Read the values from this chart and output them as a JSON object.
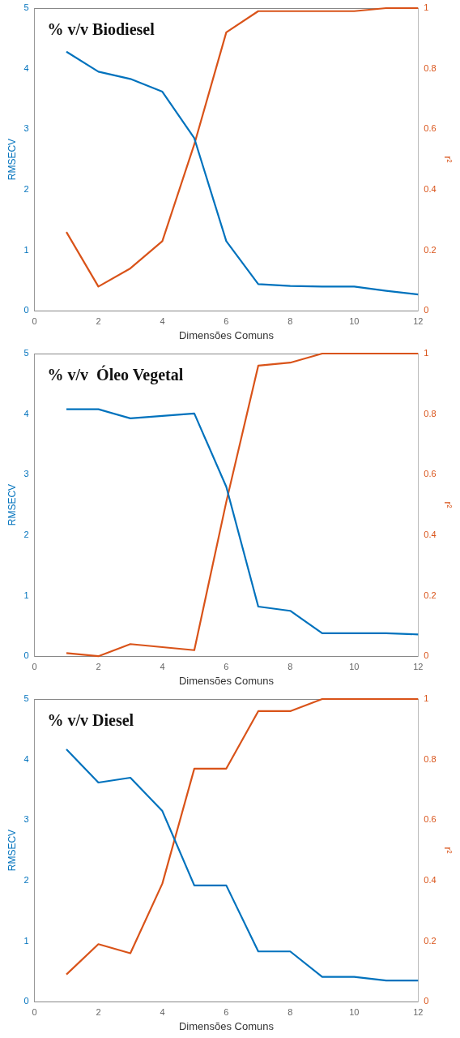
{
  "chart_data": [
    {
      "type": "line",
      "title": "% v/v Biodiesel",
      "xlabel": "Dimensões Comuns",
      "ylabel": "RMSECV",
      "y2label": "r²",
      "x": [
        1,
        2,
        3,
        4,
        5,
        6,
        7,
        8,
        9,
        10,
        11,
        12
      ],
      "series": [
        {
          "color": "#0072bd",
          "values": [
            4.28,
            3.95,
            3.83,
            3.62,
            2.85,
            1.15,
            0.44,
            0.41,
            0.4,
            0.4,
            0.33,
            0.27
          ]
        },
        {
          "color": "#d95319",
          "axis": "y2",
          "values": [
            0.26,
            0.08,
            0.14,
            0.23,
            0.55,
            0.92,
            0.99,
            0.99,
            0.99,
            0.99,
            1.0,
            1.0
          ]
        }
      ],
      "xlim": [
        0,
        12
      ],
      "xticks": [
        0,
        2,
        4,
        6,
        8,
        10,
        12
      ],
      "ylim": [
        0,
        5
      ],
      "yticks": [
        0,
        1,
        2,
        3,
        4,
        5
      ],
      "y2lim": [
        0,
        1
      ],
      "y2ticks": [
        0,
        0.2,
        0.4,
        0.6,
        0.8,
        1
      ],
      "grid": false,
      "legend": false,
      "marker": "none",
      "line_style": "solid"
    },
    {
      "type": "line",
      "title": "% v/v  Óleo Vegetal",
      "xlabel": "Dimensões Comuns",
      "ylabel": "RMSECV",
      "y2label": "r²",
      "x": [
        1,
        2,
        3,
        4,
        5,
        6,
        7,
        8,
        9,
        10,
        11,
        12
      ],
      "series": [
        {
          "color": "#0072bd",
          "values": [
            4.08,
            4.08,
            3.93,
            3.97,
            4.01,
            2.8,
            0.82,
            0.75,
            0.38,
            0.38,
            0.38,
            0.36
          ]
        },
        {
          "color": "#d95319",
          "axis": "y2",
          "values": [
            0.01,
            0.0,
            0.04,
            0.03,
            0.02,
            0.51,
            0.96,
            0.97,
            1.0,
            1.0,
            1.0,
            1.0
          ]
        }
      ],
      "xlim": [
        0,
        12
      ],
      "xticks": [
        0,
        2,
        4,
        6,
        8,
        10,
        12
      ],
      "ylim": [
        0,
        5
      ],
      "yticks": [
        0,
        1,
        2,
        3,
        4,
        5
      ],
      "y2lim": [
        0,
        1
      ],
      "y2ticks": [
        0,
        0.2,
        0.4,
        0.6,
        0.8,
        1
      ],
      "grid": false,
      "legend": false,
      "marker": "none",
      "line_style": "solid"
    },
    {
      "type": "line",
      "title": "% v/v Diesel",
      "xlabel": "Dimensões Comuns",
      "ylabel": "RMSECV",
      "y2label": "r²",
      "x": [
        1,
        2,
        3,
        4,
        5,
        6,
        7,
        8,
        9,
        10,
        11,
        12
      ],
      "series": [
        {
          "color": "#0072bd",
          "values": [
            4.17,
            3.62,
            3.7,
            3.15,
            1.92,
            1.92,
            0.83,
            0.83,
            0.41,
            0.41,
            0.35,
            0.35
          ]
        },
        {
          "color": "#d95319",
          "axis": "y2",
          "values": [
            0.09,
            0.19,
            0.16,
            0.39,
            0.77,
            0.77,
            0.96,
            0.96,
            1.0,
            1.0,
            1.0,
            1.0
          ]
        }
      ],
      "xlim": [
        0,
        12
      ],
      "xticks": [
        0,
        2,
        4,
        6,
        8,
        10,
        12
      ],
      "ylim": [
        0,
        5
      ],
      "yticks": [
        0,
        1,
        2,
        3,
        4,
        5
      ],
      "y2lim": [
        0,
        1
      ],
      "y2ticks": [
        0,
        0.2,
        0.4,
        0.6,
        0.8,
        1
      ],
      "grid": false,
      "legend": false,
      "marker": "none",
      "line_style": "solid"
    }
  ]
}
